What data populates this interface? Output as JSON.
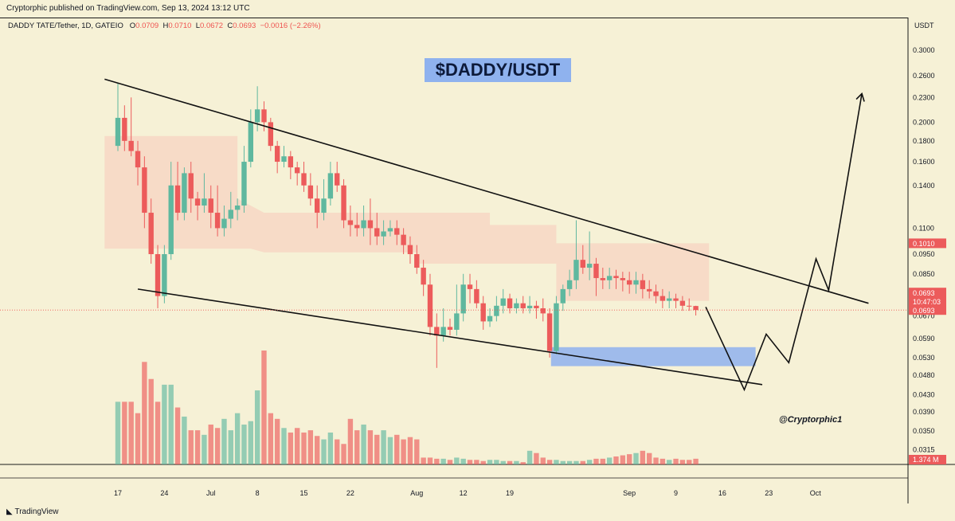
{
  "header": {
    "publisher_line": "Cryptorphic published on TradingView.com, Sep 13, 2024 13:12 UTC"
  },
  "symbol": {
    "name": "DADDY TATE/Tether, 1D, GATEIO",
    "o_label": "O",
    "o_value": "0.0709",
    "h_label": "H",
    "h_value": "0.0710",
    "l_label": "L",
    "l_value": "0.0672",
    "c_label": "C",
    "c_value": "0.0693",
    "change": "−0.0016 (−2.26%)"
  },
  "annotation": {
    "title": "$DADDY/USDT",
    "handle": "@Cryptorphic1"
  },
  "footer": {
    "brand": "TradingView"
  },
  "colors": {
    "up": "#5fb89f",
    "down": "#ec5b5b",
    "band": "#f7d6c3",
    "zone": "#8fb2ee"
  },
  "price_axis": {
    "currency": "USDT",
    "badge_level": "0.1010",
    "badge_price": "0.0693",
    "badge_countdown": "10:47:03",
    "badge_price2": "0.0693",
    "badge_volume": "1.374 M"
  },
  "chart_data": {
    "type": "candlestick",
    "y_scale": "log",
    "ylim": [
      0.029,
      0.33
    ],
    "y_ticks": [
      "0.3000",
      "0.2600",
      "0.2300",
      "0.2000",
      "0.1800",
      "0.1600",
      "0.1400",
      "0.1100",
      "0.0950",
      "0.0850",
      "0.0670",
      "0.0590",
      "0.0530",
      "0.0480",
      "0.0430",
      "0.0390",
      "0.0350",
      "0.0315"
    ],
    "x_ticks": [
      "17",
      "24",
      "Jul",
      "8",
      "15",
      "22",
      "Aug",
      "12",
      "19",
      "Sep",
      "9",
      "16",
      "23",
      "Oct"
    ],
    "x_tick_days": [
      0,
      7,
      14,
      21,
      28,
      35,
      45,
      52,
      59,
      77,
      84,
      91,
      98,
      105
    ],
    "candles": [
      [
        0,
        0.175,
        0.205,
        0.25,
        0.17
      ],
      [
        1,
        0.205,
        0.18,
        0.22,
        0.17
      ],
      [
        2,
        0.18,
        0.17,
        0.23,
        0.165
      ],
      [
        3,
        0.17,
        0.155,
        0.18,
        0.14
      ],
      [
        4,
        0.155,
        0.12,
        0.165,
        0.11
      ],
      [
        5,
        0.12,
        0.095,
        0.13,
        0.09
      ],
      [
        6,
        0.095,
        0.075,
        0.1,
        0.07
      ],
      [
        7,
        0.075,
        0.095,
        0.1,
        0.072
      ],
      [
        8,
        0.095,
        0.14,
        0.16,
        0.092
      ],
      [
        9,
        0.14,
        0.12,
        0.16,
        0.115
      ],
      [
        10,
        0.12,
        0.15,
        0.155,
        0.115
      ],
      [
        11,
        0.15,
        0.13,
        0.16,
        0.12
      ],
      [
        12,
        0.13,
        0.125,
        0.135,
        0.115
      ],
      [
        13,
        0.125,
        0.13,
        0.15,
        0.12
      ],
      [
        14,
        0.13,
        0.12,
        0.14,
        0.11
      ],
      [
        15,
        0.12,
        0.11,
        0.14,
        0.105
      ],
      [
        16,
        0.11,
        0.116,
        0.125,
        0.105
      ],
      [
        17,
        0.116,
        0.122,
        0.135,
        0.11
      ],
      [
        18,
        0.122,
        0.125,
        0.13,
        0.115
      ],
      [
        19,
        0.125,
        0.16,
        0.175,
        0.12
      ],
      [
        20,
        0.16,
        0.2,
        0.215,
        0.155
      ],
      [
        21,
        0.2,
        0.215,
        0.245,
        0.19
      ],
      [
        22,
        0.215,
        0.2,
        0.225,
        0.19
      ],
      [
        23,
        0.2,
        0.175,
        0.205,
        0.17
      ],
      [
        24,
        0.175,
        0.16,
        0.18,
        0.15
      ],
      [
        25,
        0.16,
        0.165,
        0.175,
        0.155
      ],
      [
        26,
        0.165,
        0.155,
        0.17,
        0.145
      ],
      [
        27,
        0.155,
        0.15,
        0.16,
        0.14
      ],
      [
        28,
        0.15,
        0.14,
        0.16,
        0.135
      ],
      [
        29,
        0.14,
        0.13,
        0.15,
        0.125
      ],
      [
        30,
        0.13,
        0.12,
        0.14,
        0.11
      ],
      [
        31,
        0.12,
        0.13,
        0.145,
        0.115
      ],
      [
        32,
        0.13,
        0.15,
        0.16,
        0.125
      ],
      [
        33,
        0.15,
        0.14,
        0.16,
        0.135
      ],
      [
        34,
        0.14,
        0.115,
        0.145,
        0.11
      ],
      [
        35,
        0.115,
        0.112,
        0.125,
        0.105
      ],
      [
        36,
        0.112,
        0.11,
        0.12,
        0.105
      ],
      [
        37,
        0.11,
        0.115,
        0.125,
        0.105
      ],
      [
        38,
        0.115,
        0.11,
        0.13,
        0.1
      ],
      [
        39,
        0.11,
        0.105,
        0.12,
        0.1
      ],
      [
        40,
        0.105,
        0.108,
        0.115,
        0.1
      ],
      [
        41,
        0.108,
        0.11,
        0.115,
        0.105
      ],
      [
        42,
        0.11,
        0.106,
        0.115,
        0.1
      ],
      [
        43,
        0.106,
        0.1,
        0.11,
        0.095
      ],
      [
        44,
        0.1,
        0.095,
        0.105,
        0.09
      ],
      [
        45,
        0.095,
        0.088,
        0.1,
        0.085
      ],
      [
        46,
        0.088,
        0.08,
        0.092,
        0.075
      ],
      [
        47,
        0.08,
        0.063,
        0.085,
        0.06
      ],
      [
        48,
        0.063,
        0.06,
        0.068,
        0.05
      ],
      [
        49,
        0.06,
        0.063,
        0.07,
        0.058
      ],
      [
        50,
        0.063,
        0.062,
        0.066,
        0.06
      ],
      [
        51,
        0.062,
        0.068,
        0.08,
        0.06
      ],
      [
        52,
        0.068,
        0.08,
        0.085,
        0.065
      ],
      [
        53,
        0.08,
        0.078,
        0.085,
        0.072
      ],
      [
        54,
        0.078,
        0.072,
        0.082,
        0.07
      ],
      [
        55,
        0.072,
        0.065,
        0.075,
        0.062
      ],
      [
        56,
        0.065,
        0.067,
        0.07,
        0.063
      ],
      [
        57,
        0.067,
        0.071,
        0.075,
        0.065
      ],
      [
        58,
        0.071,
        0.074,
        0.078,
        0.068
      ],
      [
        59,
        0.074,
        0.07,
        0.076,
        0.068
      ],
      [
        60,
        0.07,
        0.072,
        0.074,
        0.068
      ],
      [
        61,
        0.072,
        0.07,
        0.075,
        0.068
      ],
      [
        62,
        0.07,
        0.071,
        0.075,
        0.068
      ],
      [
        63,
        0.071,
        0.07,
        0.073,
        0.066
      ],
      [
        64,
        0.07,
        0.068,
        0.074,
        0.065
      ],
      [
        65,
        0.068,
        0.055,
        0.07,
        0.053
      ],
      [
        66,
        0.055,
        0.072,
        0.075,
        0.054
      ],
      [
        67,
        0.072,
        0.078,
        0.08,
        0.069
      ],
      [
        68,
        0.078,
        0.082,
        0.087,
        0.075
      ],
      [
        69,
        0.082,
        0.092,
        0.115,
        0.078
      ],
      [
        70,
        0.092,
        0.088,
        0.1,
        0.085
      ],
      [
        71,
        0.088,
        0.09,
        0.108,
        0.082
      ],
      [
        72,
        0.09,
        0.083,
        0.093,
        0.075
      ],
      [
        73,
        0.083,
        0.082,
        0.088,
        0.078
      ],
      [
        74,
        0.082,
        0.084,
        0.088,
        0.078
      ],
      [
        75,
        0.084,
        0.083,
        0.087,
        0.078
      ],
      [
        76,
        0.083,
        0.082,
        0.086,
        0.077
      ],
      [
        77,
        0.082,
        0.08,
        0.086,
        0.076
      ],
      [
        78,
        0.08,
        0.082,
        0.086,
        0.076
      ],
      [
        79,
        0.082,
        0.078,
        0.085,
        0.074
      ],
      [
        80,
        0.078,
        0.077,
        0.082,
        0.074
      ],
      [
        81,
        0.077,
        0.075,
        0.08,
        0.072
      ],
      [
        82,
        0.075,
        0.073,
        0.078,
        0.07
      ],
      [
        83,
        0.073,
        0.074,
        0.077,
        0.07
      ],
      [
        84,
        0.074,
        0.073,
        0.076,
        0.07
      ],
      [
        85,
        0.073,
        0.071,
        0.075,
        0.069
      ],
      [
        86,
        0.071,
        0.0709,
        0.074,
        0.069
      ],
      [
        87,
        0.0709,
        0.0693,
        0.071,
        0.0672
      ]
    ],
    "volume_relative": [
      0.55,
      0.55,
      0.55,
      0.45,
      0.9,
      0.75,
      0.55,
      0.7,
      0.7,
      0.5,
      0.42,
      0.3,
      0.3,
      0.26,
      0.35,
      0.32,
      0.4,
      0.3,
      0.45,
      0.35,
      0.38,
      0.65,
      1.0,
      0.45,
      0.4,
      0.32,
      0.28,
      0.32,
      0.28,
      0.3,
      0.25,
      0.22,
      0.28,
      0.22,
      0.18,
      0.4,
      0.3,
      0.35,
      0.3,
      0.26,
      0.3,
      0.24,
      0.26,
      0.22,
      0.24,
      0.22,
      0.06,
      0.06,
      0.05,
      0.05,
      0.04,
      0.06,
      0.05,
      0.04,
      0.04,
      0.03,
      0.04,
      0.04,
      0.03,
      0.03,
      0.03,
      0.02,
      0.12,
      0.1,
      0.06,
      0.04,
      0.04,
      0.03,
      0.03,
      0.03,
      0.03,
      0.04,
      0.05,
      0.05,
      0.06,
      0.07,
      0.08,
      0.09,
      0.1,
      0.12,
      0.1,
      0.06,
      0.05,
      0.04,
      0.05,
      0.04,
      0.04,
      0.05
    ]
  }
}
